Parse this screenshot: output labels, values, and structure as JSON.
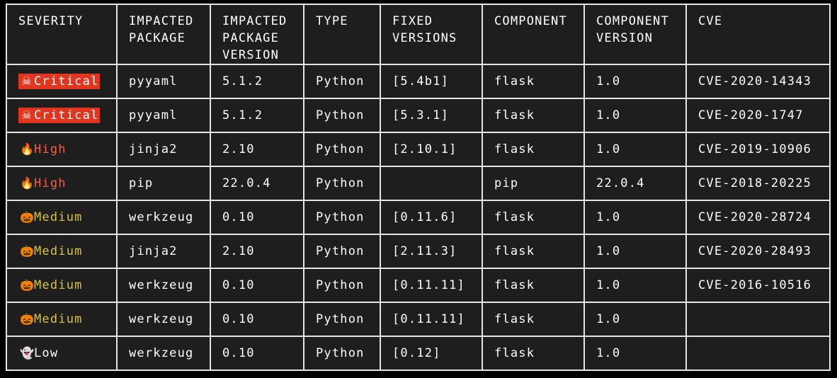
{
  "colors": {
    "background": "#000000",
    "table_bg": "#1e1e1e",
    "border": "#e6e6e6",
    "critical_bg": "#e0351e",
    "high_text": "#f0614a",
    "medium_text": "#d9c441",
    "low_text": "#ffffff"
  },
  "headers": [
    [
      "SEVERITY"
    ],
    [
      "IMPACTED",
      "PACKAGE"
    ],
    [
      "IMPACTED",
      "PACKAGE",
      "VERSION"
    ],
    [
      "TYPE"
    ],
    [
      "FIXED",
      "VERSIONS"
    ],
    [
      "COMPONENT"
    ],
    [
      "COMPONENT",
      "VERSION"
    ],
    [
      "CVE"
    ]
  ],
  "severity_icons": {
    "Critical": "☠",
    "High": "🔥",
    "Medium": "🎃",
    "Low": "👻"
  },
  "severity_icon_names": {
    "Critical": "skull-icon",
    "High": "fire-icon",
    "Medium": "pumpkin-icon",
    "Low": "ghost-icon"
  },
  "rows": [
    {
      "severity": "Critical",
      "package": "pyyaml",
      "version": "5.1.2",
      "type": "Python",
      "fixed": "[5.4b1]",
      "component": "flask",
      "component_version": "1.0",
      "cve": "CVE-2020-14343"
    },
    {
      "severity": "Critical",
      "package": "pyyaml",
      "version": "5.1.2",
      "type": "Python",
      "fixed": "[5.3.1]",
      "component": "flask",
      "component_version": "1.0",
      "cve": "CVE-2020-1747"
    },
    {
      "severity": "High",
      "package": "jinja2",
      "version": "2.10",
      "type": "Python",
      "fixed": "[2.10.1]",
      "component": "flask",
      "component_version": "1.0",
      "cve": "CVE-2019-10906"
    },
    {
      "severity": "High",
      "package": "pip",
      "version": "22.0.4",
      "type": "Python",
      "fixed": "",
      "component": "pip",
      "component_version": "22.0.4",
      "cve": "CVE-2018-20225"
    },
    {
      "severity": "Medium",
      "package": "werkzeug",
      "version": "0.10",
      "type": "Python",
      "fixed": "[0.11.6]",
      "component": "flask",
      "component_version": "1.0",
      "cve": "CVE-2020-28724"
    },
    {
      "severity": "Medium",
      "package": "jinja2",
      "version": "2.10",
      "type": "Python",
      "fixed": "[2.11.3]",
      "component": "flask",
      "component_version": "1.0",
      "cve": "CVE-2020-28493"
    },
    {
      "severity": "Medium",
      "package": "werkzeug",
      "version": "0.10",
      "type": "Python",
      "fixed": "[0.11.11]",
      "component": "flask",
      "component_version": "1.0",
      "cve": "CVE-2016-10516"
    },
    {
      "severity": "Medium",
      "package": "werkzeug",
      "version": "0.10",
      "type": "Python",
      "fixed": "[0.11.11]",
      "component": "flask",
      "component_version": "1.0",
      "cve": ""
    },
    {
      "severity": "Low",
      "package": "werkzeug",
      "version": "0.10",
      "type": "Python",
      "fixed": "[0.12]",
      "component": "flask",
      "component_version": "1.0",
      "cve": ""
    }
  ]
}
